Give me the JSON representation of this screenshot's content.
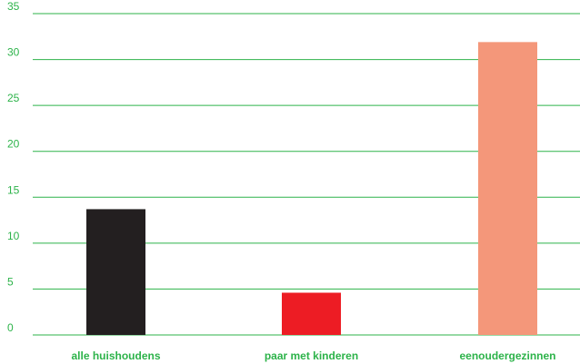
{
  "chart_data": {
    "type": "bar",
    "categories": [
      "alle huishoudens",
      "paar met kinderen",
      "eenoudergezinnen"
    ],
    "values": [
      13.7,
      4.6,
      31.9
    ],
    "bar_colors": [
      "#231f20",
      "#ed1c24",
      "#f4977a"
    ],
    "ylim": [
      0,
      35
    ],
    "yticks": [
      0,
      5,
      10,
      15,
      20,
      25,
      30,
      35
    ],
    "grid": true,
    "grid_color": "#2db34a",
    "label_color": "#2db34a",
    "legend": "none"
  }
}
